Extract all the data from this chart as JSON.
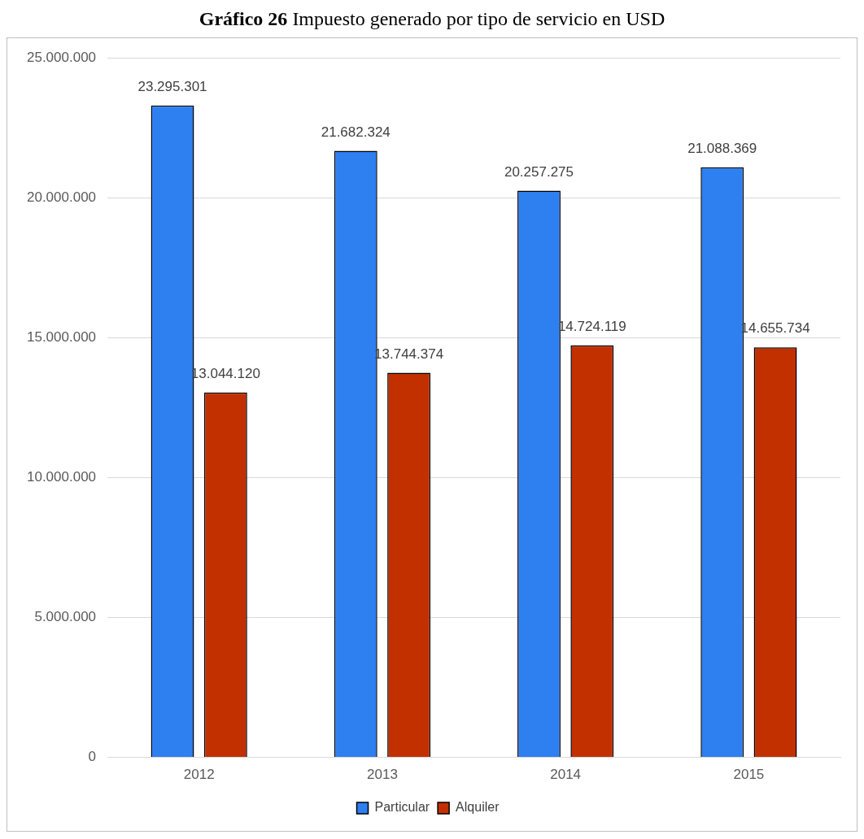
{
  "chart_data": {
    "type": "bar",
    "title": "Gráfico 26 Impuesto generado por tipo de servicio en USD",
    "categories": [
      "2012",
      "2013",
      "2014",
      "2015"
    ],
    "series": [
      {
        "name": "Particular",
        "color": "#2e7ff0",
        "values": [
          23295301,
          21682324,
          20257275,
          21088369
        ],
        "value_labels": [
          "23.295.301",
          "21.682.324",
          "20.257.275",
          "21.088.369"
        ]
      },
      {
        "name": "Alquiler",
        "color": "#c33000",
        "values": [
          13044120,
          13744374,
          14724119,
          14655734
        ],
        "value_labels": [
          "13.044.120",
          "13.744.374",
          "14.724.119",
          "14.655.734"
        ]
      }
    ],
    "ylim": [
      0,
      25000000
    ],
    "yticks": [
      {
        "value": 0,
        "label": "0"
      },
      {
        "value": 5000000,
        "label": "5.000.000"
      },
      {
        "value": 10000000,
        "label": "10.000.000"
      },
      {
        "value": 15000000,
        "label": "15.000.000"
      },
      {
        "value": 20000000,
        "label": "20.000.000"
      },
      {
        "value": 25000000,
        "label": "25.000.000"
      }
    ],
    "grid": "y",
    "legend": "bottom"
  }
}
